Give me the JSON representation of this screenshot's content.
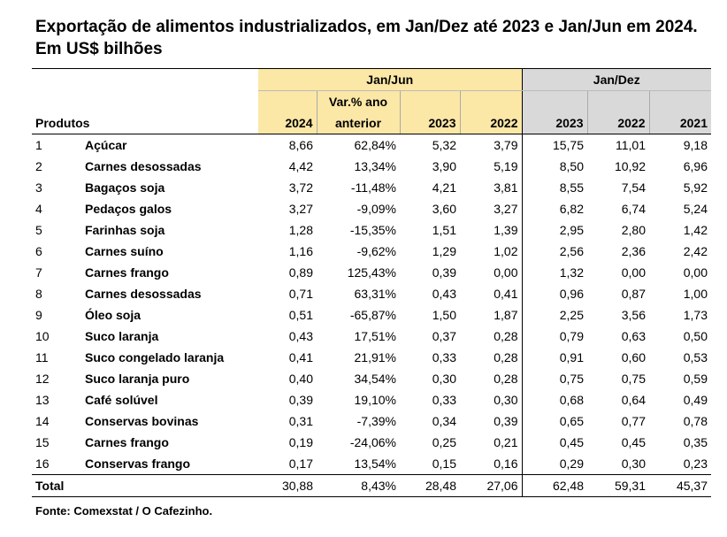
{
  "title": "Exportação de alimentos industrializados, em Jan/Dez até 2023 e Jan/Jun em 2024. Em US$ bilhões",
  "headers": {
    "group_jan_jun": "Jan/Jun",
    "group_jan_dez": "Jan/Dez",
    "produtos": "Produtos",
    "var_line1": "Var.% ano",
    "var_line2": "anterior",
    "cols": [
      "2024",
      "2023",
      "2022",
      "2023",
      "2022",
      "2021"
    ]
  },
  "rows": [
    [
      "1",
      "Açúcar",
      "8,66",
      "62,84%",
      "5,32",
      "3,79",
      "15,75",
      "11,01",
      "9,18"
    ],
    [
      "2",
      "Carnes desossadas",
      "4,42",
      "13,34%",
      "3,90",
      "5,19",
      "8,50",
      "10,92",
      "6,96"
    ],
    [
      "3",
      "Bagaços soja",
      "3,72",
      "-11,48%",
      "4,21",
      "3,81",
      "8,55",
      "7,54",
      "5,92"
    ],
    [
      "4",
      "Pedaços galos",
      "3,27",
      "-9,09%",
      "3,60",
      "3,27",
      "6,82",
      "6,74",
      "5,24"
    ],
    [
      "5",
      "Farinhas soja",
      "1,28",
      "-15,35%",
      "1,51",
      "1,39",
      "2,95",
      "2,80",
      "1,42"
    ],
    [
      "6",
      "Carnes suíno",
      "1,16",
      "-9,62%",
      "1,29",
      "1,02",
      "2,56",
      "2,36",
      "2,42"
    ],
    [
      "7",
      "Carnes frango",
      "0,89",
      "125,43%",
      "0,39",
      "0,00",
      "1,32",
      "0,00",
      "0,00"
    ],
    [
      "8",
      "Carnes desossadas",
      "0,71",
      "63,31%",
      "0,43",
      "0,41",
      "0,96",
      "0,87",
      "1,00"
    ],
    [
      "9",
      "Óleo soja",
      "0,51",
      "-65,87%",
      "1,50",
      "1,87",
      "2,25",
      "3,56",
      "1,73"
    ],
    [
      "10",
      "Suco laranja",
      "0,43",
      "17,51%",
      "0,37",
      "0,28",
      "0,79",
      "0,63",
      "0,50"
    ],
    [
      "11",
      "Suco congelado laranja",
      "0,41",
      "21,91%",
      "0,33",
      "0,28",
      "0,91",
      "0,60",
      "0,53"
    ],
    [
      "12",
      "Suco laranja puro",
      "0,40",
      "34,54%",
      "0,30",
      "0,28",
      "0,75",
      "0,75",
      "0,59"
    ],
    [
      "13",
      "Café solúvel",
      "0,39",
      "19,10%",
      "0,33",
      "0,30",
      "0,68",
      "0,64",
      "0,49"
    ],
    [
      "14",
      "Conservas bovinas",
      "0,31",
      "-7,39%",
      "0,34",
      "0,39",
      "0,65",
      "0,77",
      "0,78"
    ],
    [
      "15",
      "Carnes frango",
      "0,19",
      "-24,06%",
      "0,25",
      "0,21",
      "0,45",
      "0,45",
      "0,35"
    ],
    [
      "16",
      "Conservas frango",
      "0,17",
      "13,54%",
      "0,15",
      "0,16",
      "0,29",
      "0,30",
      "0,23"
    ]
  ],
  "total": [
    "Total",
    "30,88",
    "8,43%",
    "28,48",
    "27,06",
    "62,48",
    "59,31",
    "45,37"
  ],
  "footer": "Fonte: Comexstat / O Cafezinho."
}
